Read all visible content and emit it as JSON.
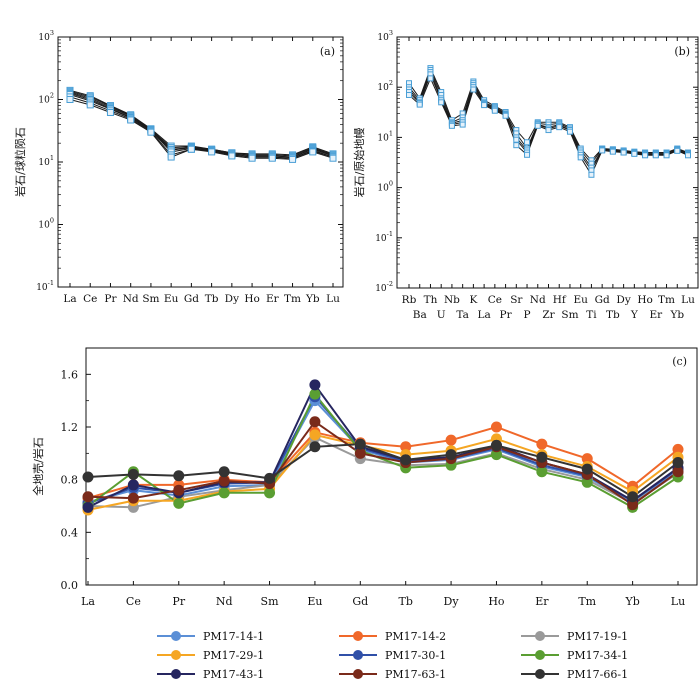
{
  "chart_data": [
    {
      "panel_label": "(a)",
      "type": "line",
      "ylabel": "岩石/球粒陨石",
      "yscale": "log",
      "ylim": [
        0.1,
        1000
      ],
      "yticks": [
        {
          "base": "10",
          "exp": "-1"
        },
        {
          "base": "10",
          "exp": "0"
        },
        {
          "base": "10",
          "exp": "1"
        },
        {
          "base": "10",
          "exp": "2"
        },
        {
          "base": "10",
          "exp": "3"
        }
      ],
      "categories": [
        "La",
        "Ce",
        "Pr",
        "Nd",
        "Sm",
        "Eu",
        "Gd",
        "Tb",
        "Dy",
        "Ho",
        "Er",
        "Tm",
        "Yb",
        "Lu"
      ],
      "series": [
        {
          "values": [
            140,
            115,
            80,
            57,
            34,
            18,
            18,
            16,
            14,
            13.5,
            13.5,
            13,
            17.5,
            13.5
          ]
        },
        {
          "values": [
            135,
            110,
            78,
            55,
            33,
            17,
            17.5,
            16,
            14,
            13,
            13,
            12.5,
            17,
            13
          ]
        },
        {
          "values": [
            130,
            105,
            75,
            54,
            33,
            16,
            17,
            15.5,
            13.5,
            12.5,
            12.5,
            12,
            16.5,
            12.5
          ]
        },
        {
          "values": [
            125,
            100,
            72,
            52,
            32,
            15.5,
            17,
            15.5,
            13.5,
            12.5,
            12.5,
            12,
            16,
            12.5
          ]
        },
        {
          "values": [
            120,
            95,
            70,
            51,
            32,
            14.5,
            16.5,
            15,
            13,
            12,
            12,
            11.5,
            15.5,
            12
          ]
        },
        {
          "values": [
            110,
            88,
            66,
            49,
            31,
            13,
            16,
            15,
            13,
            12,
            12,
            11.5,
            15,
            12
          ]
        },
        {
          "values": [
            100,
            82,
            62,
            47,
            30,
            12,
            16,
            14.5,
            12.5,
            11.5,
            11.5,
            11,
            14.5,
            11.5
          ]
        }
      ]
    },
    {
      "panel_label": "(b)",
      "type": "line",
      "ylabel": "岩石/原始地幔",
      "yscale": "log",
      "ylim": [
        0.01,
        1000
      ],
      "yticks": [
        {
          "base": "10",
          "exp": "-2"
        },
        {
          "base": "10",
          "exp": "-1"
        },
        {
          "base": "10",
          "exp": "0"
        },
        {
          "base": "10",
          "exp": "1"
        },
        {
          "base": "10",
          "exp": "2"
        },
        {
          "base": "10",
          "exp": "3"
        }
      ],
      "categories": [
        "Rb",
        "Ba",
        "Th",
        "U",
        "Nb",
        "Ta",
        "K",
        "La",
        "Ce",
        "Pr",
        "Sr",
        "P",
        "Nd",
        "Zr",
        "Hf",
        "Sm",
        "Eu",
        "Ti",
        "Gd",
        "Tb",
        "Dy",
        "Y",
        "Ho",
        "Er",
        "Tm",
        "Yb",
        "Lu"
      ],
      "series": [
        {
          "values": [
            120,
            60,
            240,
            80,
            22,
            30,
            130,
            55,
            42,
            32,
            14,
            8,
            20,
            20,
            20,
            16,
            6,
            3.5,
            6,
            5.8,
            5.5,
            5.2,
            5,
            5,
            5,
            6,
            5
          ]
        },
        {
          "values": [
            100,
            55,
            220,
            70,
            20,
            25,
            120,
            50,
            40,
            30,
            12,
            6,
            19,
            18,
            19,
            15,
            5.5,
            3,
            6,
            5.6,
            5.3,
            5,
            4.8,
            4.8,
            4.8,
            5.8,
            4.8
          ]
        },
        {
          "values": [
            90,
            50,
            200,
            60,
            19,
            22,
            110,
            48,
            38,
            29,
            10,
            5.5,
            18,
            16,
            18,
            14,
            5,
            2.5,
            5.8,
            5.5,
            5.2,
            4.9,
            4.6,
            4.6,
            4.6,
            5.6,
            4.6
          ]
        },
        {
          "values": [
            80,
            48,
            180,
            55,
            18,
            20,
            100,
            46,
            36,
            28,
            9,
            5,
            18,
            15,
            17,
            14,
            4.5,
            2.2,
            5.6,
            5.3,
            5,
            4.8,
            4.5,
            4.5,
            4.5,
            5.5,
            4.5
          ]
        },
        {
          "values": [
            70,
            45,
            150,
            50,
            17,
            18,
            90,
            44,
            34,
            27,
            7,
            4.5,
            17,
            14,
            16,
            13,
            4,
            1.8,
            5.5,
            5.2,
            5,
            4.7,
            4.4,
            4.4,
            4.4,
            5.4,
            4.4
          ]
        }
      ]
    },
    {
      "panel_label": "(c)",
      "type": "line",
      "ylabel": "全地壳/岩石",
      "ylim": [
        0,
        1.8
      ],
      "yticks": [
        "0.0",
        "0.4",
        "0.8",
        "1.2",
        "1.6"
      ],
      "grid": false,
      "legend_placement": "bottom",
      "categories": [
        "La",
        "Ce",
        "Pr",
        "Nd",
        "Sm",
        "Eu",
        "Gd",
        "Tb",
        "Dy",
        "Ho",
        "Er",
        "Tm",
        "Yb",
        "Lu"
      ],
      "series": [
        {
          "name": "PM17-14-1",
          "color": "#5b8fd6",
          "values": [
            0.63,
            0.72,
            0.68,
            0.75,
            0.76,
            1.4,
            1.03,
            0.93,
            0.95,
            1.03,
            0.9,
            0.82,
            0.63,
            0.86
          ]
        },
        {
          "name": "PM17-14-2",
          "color": "#f0682a",
          "values": [
            0.66,
            0.76,
            0.76,
            0.8,
            0.78,
            1.16,
            1.08,
            1.05,
            1.1,
            1.2,
            1.07,
            0.96,
            0.75,
            1.03
          ]
        },
        {
          "name": "PM17-19-1",
          "color": "#9a9a9a",
          "values": [
            0.6,
            0.59,
            0.67,
            0.72,
            0.76,
            1.12,
            0.96,
            0.91,
            0.92,
            1.0,
            0.88,
            0.8,
            0.62,
            0.85
          ]
        },
        {
          "name": "PM17-29-1",
          "color": "#f5a623",
          "values": [
            0.57,
            0.64,
            0.64,
            0.71,
            0.73,
            1.14,
            1.06,
            0.99,
            1.02,
            1.11,
            0.99,
            0.9,
            0.71,
            0.97
          ]
        },
        {
          "name": "PM17-30-1",
          "color": "#3050a8",
          "values": [
            0.62,
            0.74,
            0.7,
            0.77,
            0.78,
            1.43,
            1.04,
            0.94,
            0.96,
            1.04,
            0.91,
            0.83,
            0.64,
            0.88
          ]
        },
        {
          "name": "PM17-34-1",
          "color": "#5a9e32",
          "values": [
            0.6,
            0.86,
            0.62,
            0.7,
            0.7,
            1.45,
            1.02,
            0.89,
            0.91,
            0.99,
            0.86,
            0.78,
            0.59,
            0.82
          ]
        },
        {
          "name": "PM17-43-1",
          "color": "#262660",
          "values": [
            0.59,
            0.76,
            0.7,
            0.78,
            0.78,
            1.52,
            1.05,
            0.95,
            0.97,
            1.06,
            0.93,
            0.84,
            0.64,
            0.89
          ]
        },
        {
          "name": "PM17-63-1",
          "color": "#7a2a1a",
          "values": [
            0.67,
            0.66,
            0.72,
            0.79,
            0.77,
            1.24,
            1.0,
            0.93,
            0.96,
            1.05,
            0.93,
            0.84,
            0.61,
            0.86
          ]
        },
        {
          "name": "PM17-66-1",
          "color": "#333333",
          "values": [
            0.82,
            0.84,
            0.83,
            0.86,
            0.81,
            1.05,
            1.07,
            0.95,
            0.99,
            1.06,
            0.97,
            0.88,
            0.67,
            0.93
          ]
        }
      ]
    }
  ]
}
